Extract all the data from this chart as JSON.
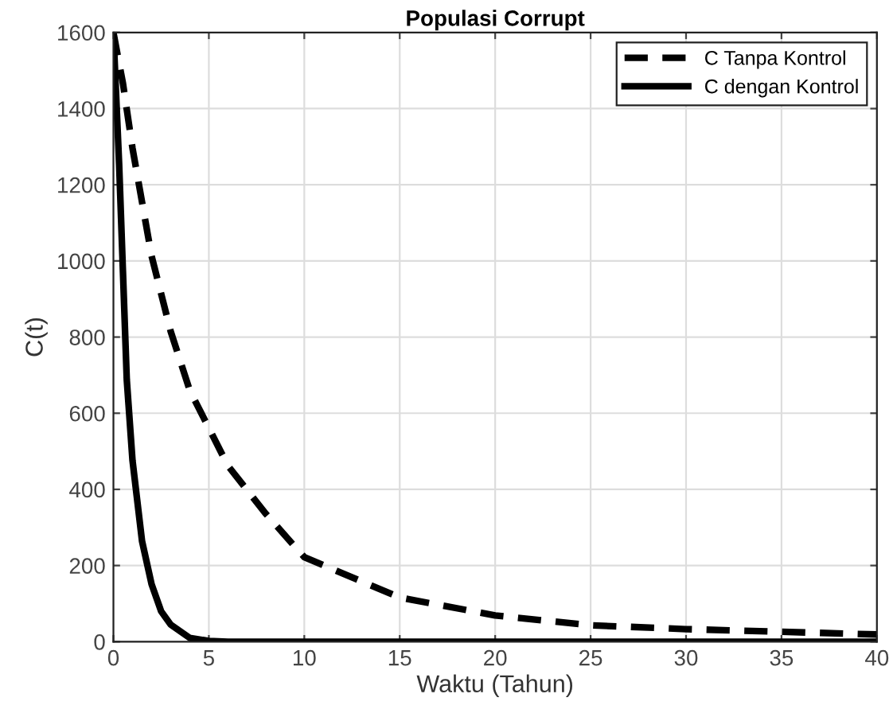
{
  "chart_data": {
    "type": "line",
    "title": "Populasi Corrupt",
    "xlabel": "Waktu (Tahun)",
    "ylabel": "C(t)",
    "xlim": [
      0,
      40
    ],
    "ylim": [
      0,
      1600
    ],
    "xticks": [
      0,
      5,
      10,
      15,
      20,
      25,
      30,
      35,
      40
    ],
    "yticks": [
      0,
      200,
      400,
      600,
      800,
      1000,
      1200,
      1400,
      1600
    ],
    "grid": true,
    "legend": "top right",
    "marker": "none",
    "series": [
      {
        "name": "C Tanpa Kontrol",
        "color": "#000000",
        "line_style": "dashed",
        "x": [
          0,
          0.5,
          1,
          2,
          3,
          4,
          5,
          6,
          8,
          10,
          15,
          20,
          25,
          30,
          35,
          40
        ],
        "values": [
          1600,
          1466,
          1296,
          1013,
          815,
          660,
          561,
          462,
          335,
          222,
          116,
          69,
          43,
          33,
          26,
          19
        ]
      },
      {
        "name": "C dengan Kontrol",
        "color": "#000000",
        "line_style": "solid",
        "x": [
          0,
          0.3,
          0.5,
          0.7,
          1,
          1.5,
          2,
          2.5,
          3,
          4,
          5,
          6,
          40
        ],
        "values": [
          1600,
          1254,
          971,
          688,
          476,
          264,
          151,
          80,
          45,
          10,
          2,
          0,
          0
        ]
      }
    ]
  }
}
